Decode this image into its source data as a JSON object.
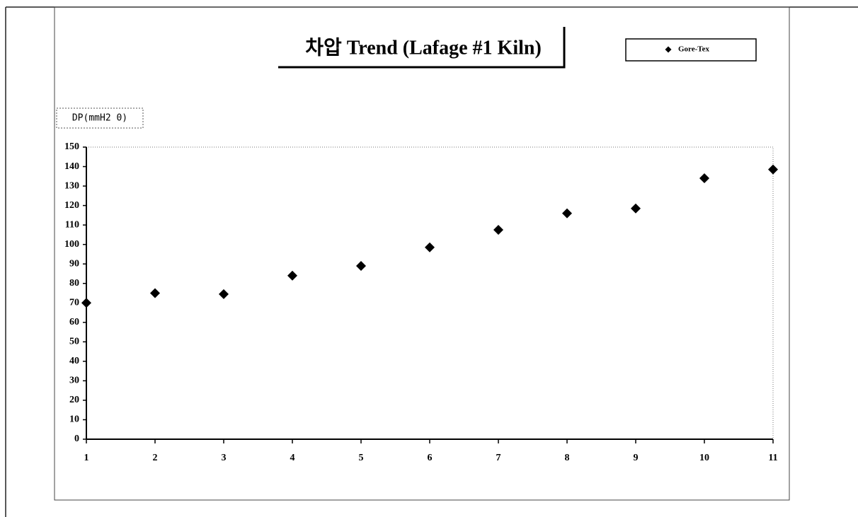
{
  "chart_data": {
    "type": "scatter",
    "title": "차압 Trend (Lafage #1 Kiln)",
    "y_label": "DP(mmH2 0)",
    "x": [
      1,
      2,
      3,
      4,
      5,
      6,
      7,
      8,
      9,
      10,
      11
    ],
    "series": [
      {
        "name": "Gore-Tex",
        "color": "#000000",
        "values": [
          70,
          75,
          74.5,
          84,
          89,
          98.5,
          107.5,
          116,
          118.5,
          134,
          138.5
        ]
      }
    ],
    "xlim": [
      1,
      11
    ],
    "xticks": [
      1,
      2,
      3,
      4,
      5,
      6,
      7,
      8,
      9,
      10,
      11
    ],
    "ylim": [
      0,
      150
    ],
    "yticks": [
      0,
      10,
      20,
      30,
      40,
      50,
      60,
      70,
      80,
      90,
      100,
      110,
      120,
      130,
      140,
      150
    ]
  }
}
